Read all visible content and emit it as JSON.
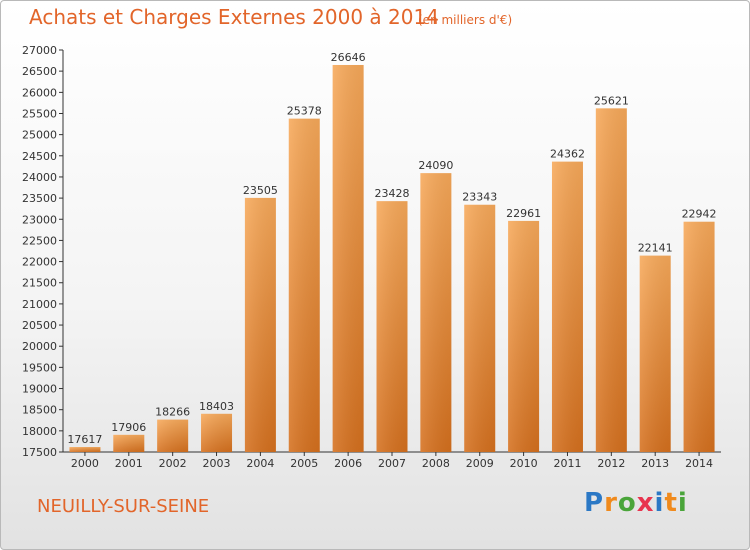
{
  "title": "Achats et Charges Externes 2000 à 2014",
  "subtitle": "(en milliers d'€)",
  "city": "NEUILLY-SUR-SEINE",
  "logo": {
    "letters": [
      "P",
      "r",
      "o",
      "x",
      "i",
      "t",
      "i"
    ],
    "colors": [
      "#2b78c5",
      "#f08a1c",
      "#4aa53a",
      "#e8344e",
      "#2b78c5",
      "#f08a1c",
      "#4aa53a"
    ]
  },
  "colors": {
    "accent": "#e2652a",
    "bar_light": "#f6a656",
    "bar_dark": "#d9711d"
  },
  "chart_data": {
    "type": "bar",
    "title": "Achats et Charges Externes 2000 à 2014",
    "subtitle": "(en milliers d'€)",
    "xlabel": "",
    "ylabel": "",
    "categories": [
      "2000",
      "2001",
      "2002",
      "2003",
      "2004",
      "2005",
      "2006",
      "2007",
      "2008",
      "2009",
      "2010",
      "2011",
      "2012",
      "2013",
      "2014"
    ],
    "values": [
      17617,
      17906,
      18266,
      18403,
      23505,
      25378,
      26646,
      23428,
      24090,
      23343,
      22961,
      24362,
      25621,
      22141,
      22942
    ],
    "ylim": [
      17500,
      27000
    ],
    "yticks": [
      17500,
      18000,
      18500,
      19000,
      19500,
      20000,
      20500,
      21000,
      21500,
      22000,
      22500,
      23000,
      23500,
      24000,
      24500,
      25000,
      25500,
      26000,
      26500,
      27000
    ],
    "grid": false,
    "legend": "none"
  }
}
